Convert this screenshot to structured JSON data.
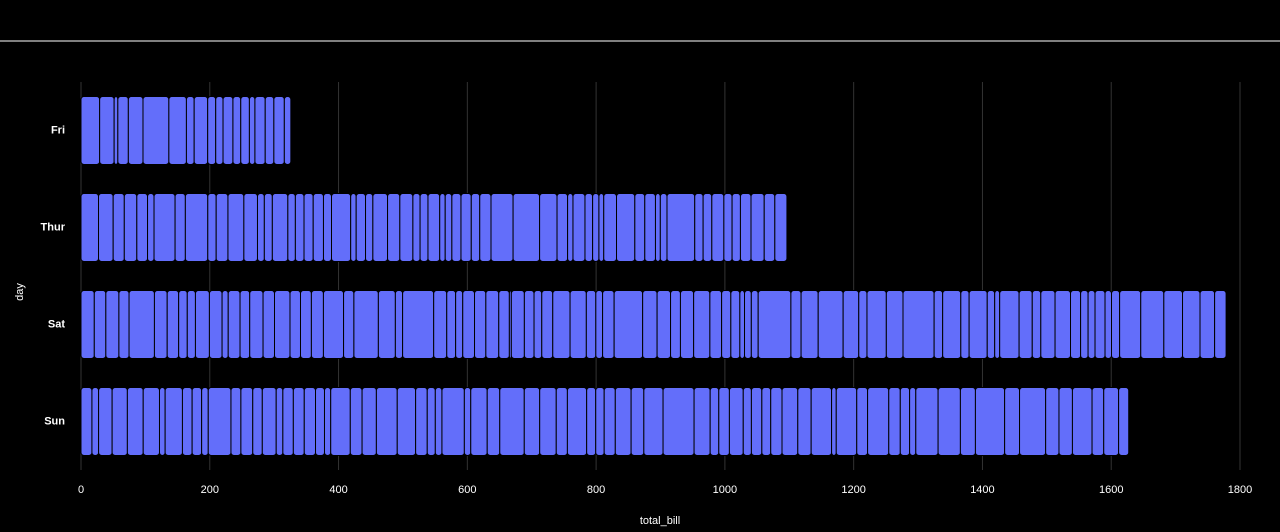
{
  "chart_data": {
    "type": "bar",
    "orientation": "horizontal",
    "stacked": true,
    "xlabel": "total_bill",
    "ylabel": "day",
    "color": "#636efa",
    "grid": true,
    "categories": [
      "Sun",
      "Sat",
      "Thur",
      "Fri"
    ],
    "values": [
      [
        16.99,
        10.34,
        21.01,
        23.68,
        24.59,
        25.29,
        8.77,
        26.88,
        15.04,
        14.78,
        10.27,
        35.26,
        15.42,
        18.43,
        14.83,
        21.58,
        10.33,
        16.29,
        16.97,
        17.46,
        13.94,
        9.68,
        30.4,
        18.29,
        22.23,
        32.4,
        28.55,
        18.04,
        12.54,
        10.29,
        34.81,
        9.94,
        25.56,
        19.49,
        38.07,
        23.95,
        25.71,
        17.31,
        29.93,
        14.07,
        13.13,
        17.26,
        24.55,
        19.77,
        29.85,
        48.17,
        25.0,
        13.39,
        16.49,
        21.5,
        12.66,
        16.21,
        13.81,
        17.51,
        24.52,
        20.76,
        31.71,
        7.25,
        31.85,
        16.82,
        32.9,
        17.89,
        14.48,
        9.6,
        34.63,
        34.65,
        23.33,
        45.35,
        23.17,
        40.55,
        20.69,
        20.9,
        30.46,
        18.15,
        23.1,
        15.69
      ],
      [
        20.65,
        17.92,
        20.29,
        15.77,
        39.42,
        19.82,
        17.81,
        13.37,
        12.69,
        21.7,
        19.65,
        9.55,
        18.35,
        15.06,
        20.69,
        17.78,
        24.06,
        16.31,
        16.93,
        18.69,
        31.27,
        16.04,
        38.01,
        26.41,
        11.24,
        48.27,
        20.29,
        13.81,
        11.02,
        18.29,
        17.59,
        20.08,
        16.45,
        3.07,
        20.23,
        15.01,
        12.02,
        17.07,
        26.86,
        25.28,
        14.73,
        10.51,
        17.92,
        44.3,
        22.42,
        20.92,
        15.36,
        20.49,
        25.21,
        18.24,
        14.31,
        14.0,
        7.25,
        10.59,
        10.63,
        50.81,
        15.81,
        26.59,
        38.73,
        24.27,
        12.76,
        30.06,
        25.89,
        48.33,
        13.27,
        28.17,
        12.9,
        28.15,
        11.59,
        7.74,
        30.14,
        20.45,
        13.28,
        22.12,
        24.01,
        15.69,
        11.61,
        10.77,
        15.53,
        10.07,
        12.6,
        32.83,
        35.83,
        29.03,
        27.18,
        22.67,
        17.82
      ],
      [
        27.2,
        22.76,
        17.29,
        19.44,
        16.66,
        10.07,
        32.68,
        15.98,
        34.83,
        13.03,
        18.28,
        24.71,
        21.16,
        10.65,
        12.43,
        24.08,
        11.69,
        13.42,
        14.26,
        15.95,
        12.48,
        29.8,
        8.52,
        14.52,
        11.38,
        22.82,
        19.08,
        20.27,
        11.17,
        12.26,
        18.26,
        8.51,
        10.33,
        14.15,
        16.0,
        13.16,
        17.47,
        34.3,
        41.19,
        27.05,
        16.43,
        8.35,
        18.64,
        11.87,
        9.78,
        7.51,
        19.81,
        28.44,
        15.48,
        16.58,
        7.56,
        10.34,
        43.11,
        13.0,
        13.51,
        18.71,
        12.74,
        13.0,
        16.4,
        20.53,
        16.47,
        18.78
      ],
      [
        28.97,
        22.49,
        5.75,
        16.32,
        22.75,
        40.17,
        27.28,
        12.03,
        21.01,
        12.46,
        11.35,
        15.38,
        12.16,
        13.42,
        8.58,
        15.98,
        13.42,
        16.27,
        10.09
      ]
    ],
    "xlim": [
      0,
      1800
    ],
    "xticks": [
      0,
      200,
      400,
      600,
      800,
      1000,
      1200,
      1400,
      1600,
      1800
    ]
  }
}
